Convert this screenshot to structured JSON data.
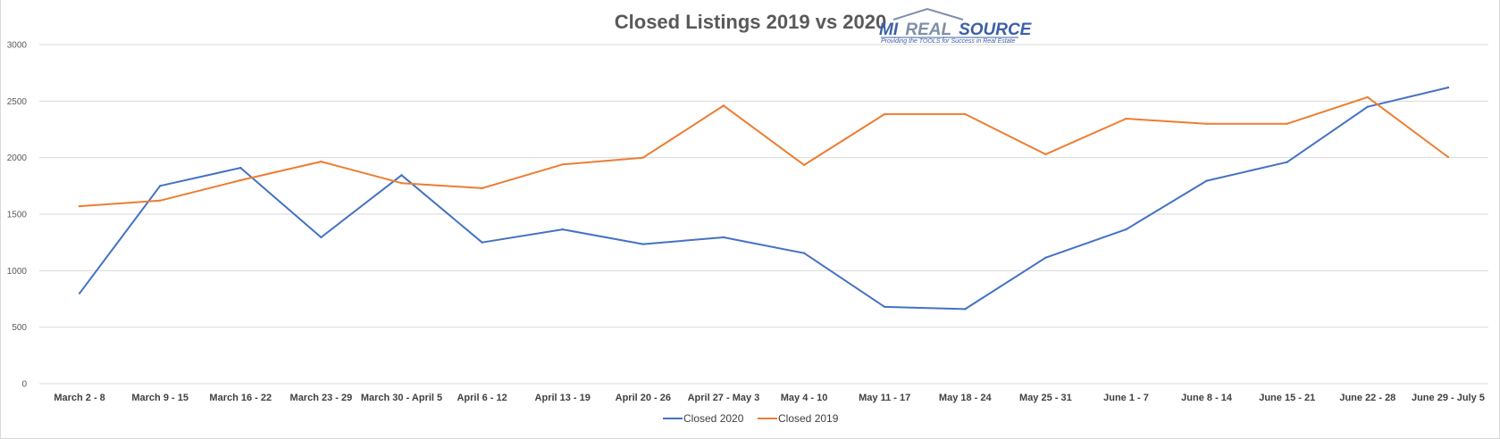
{
  "chart_data": {
    "type": "line",
    "title": "Closed Listings 2019 vs 2020",
    "xlabel": "",
    "ylabel": "",
    "categories": [
      "March 2 - 8",
      "March 9 - 15",
      "March 16 - 22",
      "March 23 - 29",
      "March 30 - April 5",
      "April 6 - 12",
      "April 13 - 19",
      "April 20 - 26",
      "April 27 - May 3",
      "May 4 - 10",
      "May 11 - 17",
      "May 18 - 24",
      "May 25 - 31",
      "June 1 - 7",
      "June 8 - 14",
      "June 15 - 21",
      "June 22 - 28",
      "June 29 - July 5"
    ],
    "ylim": [
      0,
      3000
    ],
    "yticks": [
      "0",
      "500",
      "1000",
      "1500",
      "2000",
      "2500",
      "3000"
    ],
    "grid": true,
    "legend_position": "bottom",
    "series": [
      {
        "name": "Closed 2020",
        "color": "#4472c4",
        "values": [
          800,
          1750,
          1910,
          1295,
          1845,
          1250,
          1365,
          1235,
          1295,
          1155,
          680,
          660,
          1115,
          1365,
          1795,
          1960,
          2450,
          2620
        ]
      },
      {
        "name": "Closed 2019",
        "color": "#ed7d31",
        "values": [
          1570,
          1620,
          1800,
          1965,
          1775,
          1730,
          1940,
          2000,
          2460,
          1935,
          2385,
          2385,
          2030,
          2345,
          2300,
          2300,
          2535,
          2005
        ]
      }
    ]
  },
  "logo": {
    "line1_a": "MI",
    "line1_b": "REAL",
    "line1_c": "SOURCE",
    "tagline": "Providing the TOOLS for Success in Real Estate"
  }
}
